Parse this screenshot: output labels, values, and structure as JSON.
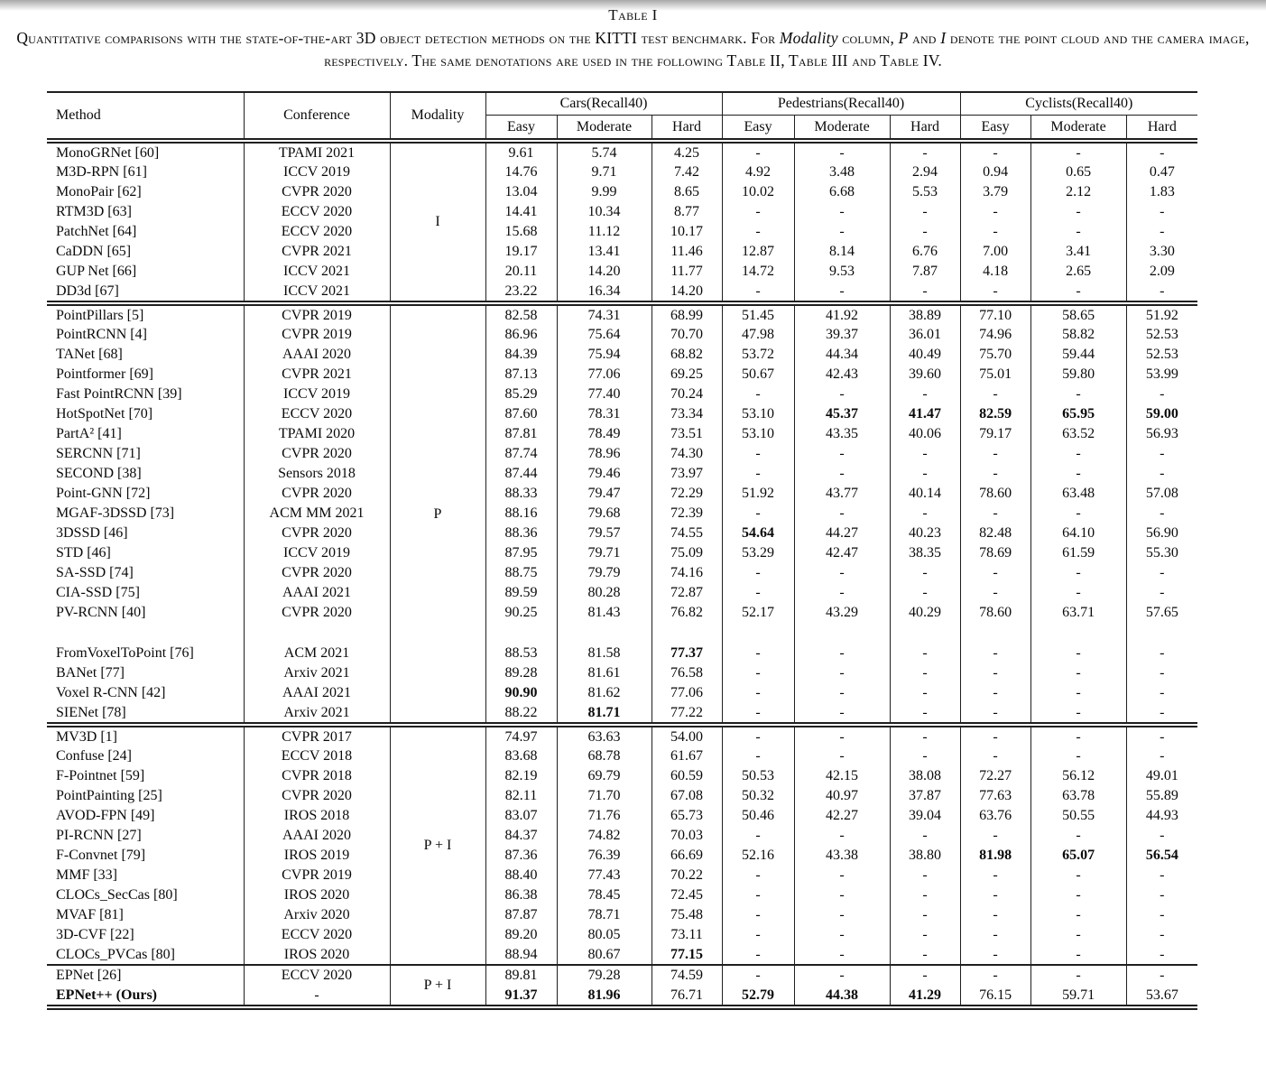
{
  "caption": {
    "label": "Table I",
    "part1": "Quantitative comparisons with the state-of-the-art 3D object detection methods on the KITTI test benchmark. For ",
    "modality_word": "Modality",
    "part2": " column, ",
    "p_word": "P",
    "part3": " and ",
    "i_word": "I",
    "part4": " denote the point cloud and the camera image, respectively. The same denotations are used in the following Table II, Table III and Table IV."
  },
  "table": {
    "columns": [
      "Method",
      "Conference",
      "Modality"
    ],
    "groups_header": [
      {
        "label": "Cars(Recall40)",
        "sub": [
          "Easy",
          "Moderate",
          "Hard"
        ]
      },
      {
        "label": "Pedestrians(Recall40)",
        "sub": [
          "Easy",
          "Moderate",
          "Hard"
        ]
      },
      {
        "label": "Cyclists(Recall40)",
        "sub": [
          "Easy",
          "Moderate",
          "Hard"
        ]
      }
    ],
    "blocks": [
      {
        "modality": "I",
        "rule_after": "double",
        "subgroups": [
          [
            {
              "method": "MonoGRNet [60]",
              "conference": "TPAMI 2021",
              "values": [
                "9.61",
                "5.74",
                "4.25",
                "-",
                "-",
                "-",
                "-",
                "-",
                "-"
              ]
            },
            {
              "method": "M3D-RPN [61]",
              "conference": "ICCV 2019",
              "values": [
                "14.76",
                "9.71",
                "7.42",
                "4.92",
                "3.48",
                "2.94",
                "0.94",
                "0.65",
                "0.47"
              ]
            },
            {
              "method": "MonoPair [62]",
              "conference": "CVPR 2020",
              "values": [
                "13.04",
                "9.99",
                "8.65",
                "10.02",
                "6.68",
                "5.53",
                "3.79",
                "2.12",
                "1.83"
              ]
            },
            {
              "method": "RTM3D [63]",
              "conference": "ECCV 2020",
              "values": [
                "14.41",
                "10.34",
                "8.77",
                "-",
                "-",
                "-",
                "-",
                "-",
                "-"
              ]
            },
            {
              "method": "PatchNet [64]",
              "conference": "ECCV 2020",
              "values": [
                "15.68",
                "11.12",
                "10.17",
                "-",
                "-",
                "-",
                "-",
                "-",
                "-"
              ]
            },
            {
              "method": "CaDDN [65]",
              "conference": "CVPR 2021",
              "values": [
                "19.17",
                "13.41",
                "11.46",
                "12.87",
                "8.14",
                "6.76",
                "7.00",
                "3.41",
                "3.30"
              ]
            },
            {
              "method": "GUP Net [66]",
              "conference": "ICCV 2021",
              "values": [
                "20.11",
                "14.20",
                "11.77",
                "14.72",
                "9.53",
                "7.87",
                "4.18",
                "2.65",
                "2.09"
              ]
            },
            {
              "method": "DD3d [67]",
              "conference": "ICCV 2021",
              "values": [
                "23.22",
                "16.34",
                "14.20",
                "-",
                "-",
                "-",
                "-",
                "-",
                "-"
              ]
            }
          ]
        ]
      },
      {
        "modality": "P",
        "rule_after": "double",
        "subgroups": [
          [
            {
              "method": "PointPillars [5]",
              "conference": "CVPR 2019",
              "values": [
                "82.58",
                "74.31",
                "68.99",
                "51.45",
                "41.92",
                "38.89",
                "77.10",
                "58.65",
                "51.92"
              ]
            },
            {
              "method": "PointRCNN [4]",
              "conference": "CVPR 2019",
              "values": [
                "86.96",
                "75.64",
                "70.70",
                "47.98",
                "39.37",
                "36.01",
                "74.96",
                "58.82",
                "52.53"
              ]
            },
            {
              "method": "TANet [68]",
              "conference": "AAAI 2020",
              "values": [
                "84.39",
                "75.94",
                "68.82",
                "53.72",
                "44.34",
                "40.49",
                "75.70",
                "59.44",
                "52.53"
              ]
            },
            {
              "method": "Pointformer [69]",
              "conference": "CVPR 2021",
              "values": [
                "87.13",
                "77.06",
                "69.25",
                "50.67",
                "42.43",
                "39.60",
                "75.01",
                "59.80",
                "53.99"
              ]
            },
            {
              "method": "Fast PointRCNN [39]",
              "conference": "ICCV 2019",
              "values": [
                "85.29",
                "77.40",
                "70.24",
                "-",
                "-",
                "-",
                "-",
                "-",
                "-"
              ]
            },
            {
              "method": "HotSpotNet [70]",
              "conference": "ECCV 2020",
              "values": [
                "87.60",
                "78.31",
                "73.34",
                "53.10",
                "45.37",
                "41.47",
                "82.59",
                "65.95",
                "59.00"
              ],
              "bold": [
                4,
                5,
                6,
                7,
                8
              ]
            },
            {
              "method": "PartA² [41]",
              "conference": "TPAMI 2020",
              "values": [
                "87.81",
                "78.49",
                "73.51",
                "53.10",
                "43.35",
                "40.06",
                "79.17",
                "63.52",
                "56.93"
              ]
            },
            {
              "method": "SERCNN [71]",
              "conference": "CVPR 2020",
              "values": [
                "87.74",
                "78.96",
                "74.30",
                "-",
                "-",
                "-",
                "-",
                "-",
                "-"
              ]
            },
            {
              "method": "SECOND [38]",
              "conference": "Sensors 2018",
              "values": [
                "87.44",
                "79.46",
                "73.97",
                "-",
                "-",
                "-",
                "-",
                "-",
                "-"
              ]
            },
            {
              "method": "Point-GNN [72]",
              "conference": "CVPR 2020",
              "values": [
                "88.33",
                "79.47",
                "72.29",
                "51.92",
                "43.77",
                "40.14",
                "78.60",
                "63.48",
                "57.08"
              ]
            },
            {
              "method": "MGAF-3DSSD [73]",
              "conference": "ACM MM 2021",
              "values": [
                "88.16",
                "79.68",
                "72.39",
                "-",
                "-",
                "-",
                "-",
                "-",
                "-"
              ]
            },
            {
              "method": "3DSSD [46]",
              "conference": "CVPR 2020",
              "values": [
                "88.36",
                "79.57",
                "74.55",
                "54.64",
                "44.27",
                "40.23",
                "82.48",
                "64.10",
                "56.90"
              ],
              "bold": [
                3
              ]
            },
            {
              "method": "STD [46]",
              "conference": "ICCV 2019",
              "values": [
                "87.95",
                "79.71",
                "75.09",
                "53.29",
                "42.47",
                "38.35",
                "78.69",
                "61.59",
                "55.30"
              ]
            },
            {
              "method": "SA-SSD [74]",
              "conference": "CVPR 2020",
              "values": [
                "88.75",
                "79.79",
                "74.16",
                "-",
                "-",
                "-",
                "-",
                "-",
                "-"
              ]
            },
            {
              "method": "CIA-SSD [75]",
              "conference": "AAAI 2021",
              "values": [
                "89.59",
                "80.28",
                "72.87",
                "-",
                "-",
                "-",
                "-",
                "-",
                "-"
              ]
            },
            {
              "method": "PV-RCNN [40]",
              "conference": "CVPR 2020",
              "values": [
                "90.25",
                "81.43",
                "76.82",
                "52.17",
                "43.29",
                "40.29",
                "78.60",
                "63.71",
                "57.65"
              ]
            }
          ],
          [
            {
              "method": "FromVoxelToPoint [76]",
              "conference": "ACM 2021",
              "values": [
                "88.53",
                "81.58",
                "77.37",
                "-",
                "-",
                "-",
                "-",
                "-",
                "-"
              ],
              "bold": [
                2
              ]
            },
            {
              "method": "BANet [77]",
              "conference": "Arxiv 2021",
              "values": [
                "89.28",
                "81.61",
                "76.58",
                "-",
                "-",
                "-",
                "-",
                "-",
                "-"
              ]
            },
            {
              "method": "Voxel R-CNN [42]",
              "conference": "AAAI 2021",
              "values": [
                "90.90",
                "81.62",
                "77.06",
                "-",
                "-",
                "-",
                "-",
                "-",
                "-"
              ],
              "bold": [
                0
              ]
            },
            {
              "method": "SIENet [78]",
              "conference": "Arxiv 2021",
              "values": [
                "88.22",
                "81.71",
                "77.22",
                "-",
                "-",
                "-",
                "-",
                "-",
                "-"
              ],
              "bold": [
                1
              ]
            }
          ]
        ]
      },
      {
        "modality": "P + I",
        "rule_after": "single",
        "subgroups": [
          [
            {
              "method": "MV3D [1]",
              "conference": "CVPR 2017",
              "values": [
                "74.97",
                "63.63",
                "54.00",
                "-",
                "-",
                "-",
                "-",
                "-",
                "-"
              ]
            },
            {
              "method": "Confuse [24]",
              "conference": "ECCV 2018",
              "values": [
                "83.68",
                "68.78",
                "61.67",
                "-",
                "-",
                "-",
                "-",
                "-",
                "-"
              ]
            },
            {
              "method": "F-Pointnet [59]",
              "conference": "CVPR 2018",
              "values": [
                "82.19",
                "69.79",
                "60.59",
                "50.53",
                "42.15",
                "38.08",
                "72.27",
                "56.12",
                "49.01"
              ]
            },
            {
              "method": "PointPainting [25]",
              "conference": "CVPR 2020",
              "values": [
                "82.11",
                "71.70",
                "67.08",
                "50.32",
                "40.97",
                "37.87",
                "77.63",
                "63.78",
                "55.89"
              ]
            },
            {
              "method": "AVOD-FPN [49]",
              "conference": "IROS 2018",
              "values": [
                "83.07",
                "71.76",
                "65.73",
                "50.46",
                "42.27",
                "39.04",
                "63.76",
                "50.55",
                "44.93"
              ]
            },
            {
              "method": "PI-RCNN [27]",
              "conference": "AAAI 2020",
              "values": [
                "84.37",
                "74.82",
                "70.03",
                "-",
                "-",
                "-",
                "-",
                "-",
                "-"
              ]
            },
            {
              "method": "F-Convnet [79]",
              "conference": "IROS 2019",
              "values": [
                "87.36",
                "76.39",
                "66.69",
                "52.16",
                "43.38",
                "38.80",
                "81.98",
                "65.07",
                "56.54"
              ],
              "bold": [
                6,
                7,
                8
              ]
            },
            {
              "method": "MMF [33]",
              "conference": "CVPR 2019",
              "values": [
                "88.40",
                "77.43",
                "70.22",
                "-",
                "-",
                "-",
                "-",
                "-",
                "-"
              ]
            },
            {
              "method": "CLOCs_SecCas [80]",
              "conference": "IROS 2020",
              "values": [
                "86.38",
                "78.45",
                "72.45",
                "-",
                "-",
                "-",
                "-",
                "-",
                "-"
              ]
            },
            {
              "method": "MVAF [81]",
              "conference": "Arxiv 2020",
              "values": [
                "87.87",
                "78.71",
                "75.48",
                "-",
                "-",
                "-",
                "-",
                "-",
                "-"
              ]
            },
            {
              "method": "3D-CVF [22]",
              "conference": "ECCV 2020",
              "values": [
                "89.20",
                "80.05",
                "73.11",
                "-",
                "-",
                "-",
                "-",
                "-",
                "-"
              ]
            },
            {
              "method": "CLOCs_PVCas [80]",
              "conference": "IROS 2020",
              "values": [
                "88.94",
                "80.67",
                "77.15",
                "-",
                "-",
                "-",
                "-",
                "-",
                "-"
              ],
              "bold": [
                2
              ]
            }
          ]
        ]
      },
      {
        "modality": "P + I",
        "rule_after": "double",
        "subgroups": [
          [
            {
              "method": "EPNet [26]",
              "conference": "ECCV 2020",
              "values": [
                "89.81",
                "79.28",
                "74.59",
                "-",
                "-",
                "-",
                "-",
                "-",
                "-"
              ]
            },
            {
              "method": "EPNet++ (Ours)",
              "conference": "-",
              "values": [
                "91.37",
                "81.96",
                "76.71",
                "52.79",
                "44.38",
                "41.29",
                "76.15",
                "59.71",
                "53.67"
              ],
              "bold": [
                0,
                1,
                3,
                4,
                5
              ],
              "bold_method": true
            }
          ]
        ]
      }
    ]
  }
}
